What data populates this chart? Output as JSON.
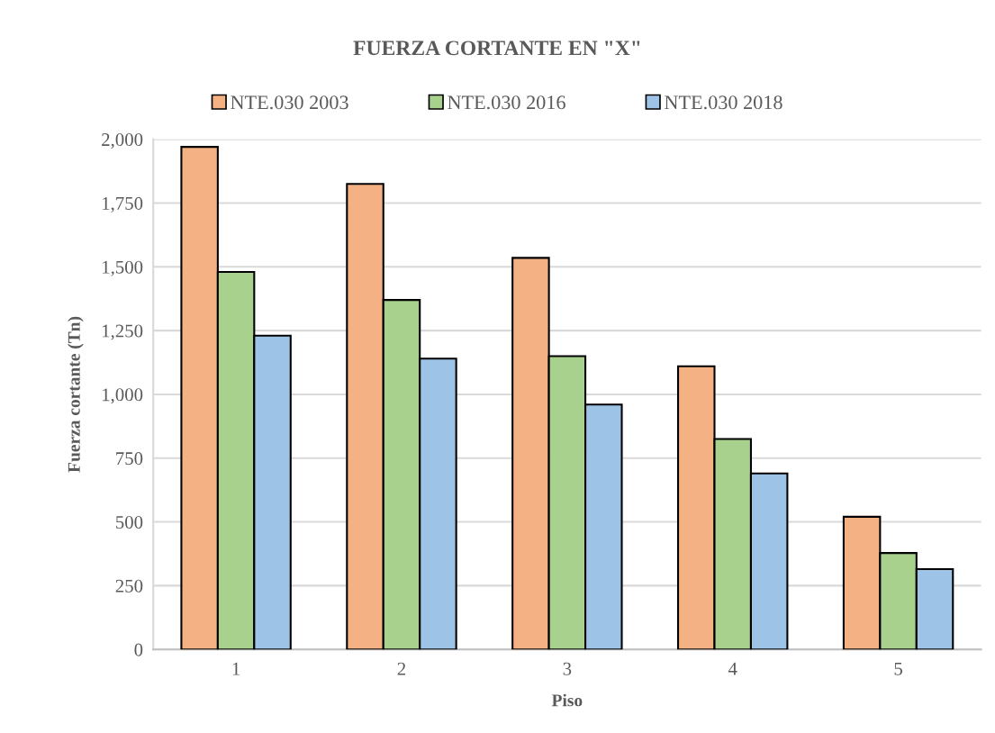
{
  "chart_data": {
    "type": "bar",
    "title": "FUERZA CORTANTE EN \"X\"",
    "xlabel": "Piso",
    "ylabel": "Fuerza cortante (Tn)",
    "categories": [
      "1",
      "2",
      "3",
      "4",
      "5"
    ],
    "series": [
      {
        "name": "NTE.030 2003",
        "color": "#f4b183",
        "values": [
          1970,
          1825,
          1535,
          1110,
          520
        ]
      },
      {
        "name": "NTE.030 2016",
        "color": "#a9d18e",
        "values": [
          1480,
          1370,
          1150,
          825,
          378
        ]
      },
      {
        "name": "NTE.030 2018",
        "color": "#9dc3e6",
        "values": [
          1230,
          1140,
          960,
          690,
          315
        ]
      }
    ],
    "ylim": [
      0,
      2000
    ],
    "yticks": [
      0,
      {
        "value": 250,
        "label": "250"
      },
      {
        "value": 500,
        "label": "500"
      },
      {
        "value": 750,
        "label": "750"
      },
      {
        "value": 1000,
        "label": "1,000"
      },
      {
        "value": 1250,
        "label": "1,250"
      },
      {
        "value": 1500,
        "label": "1,500"
      },
      {
        "value": 1750,
        "label": "1,750"
      },
      {
        "value": 2000,
        "label": "2,000"
      }
    ],
    "grid": "y",
    "legend": "top"
  }
}
